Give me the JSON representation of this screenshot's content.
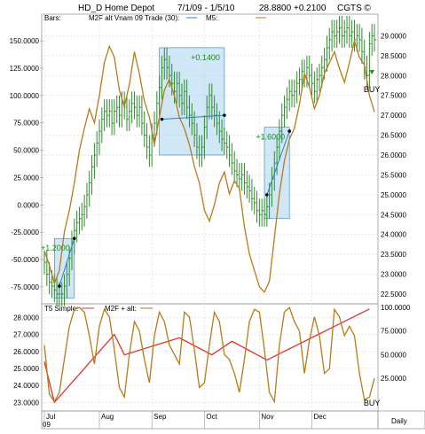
{
  "header": {
    "symbol": "HD_D",
    "name": "Home Depot",
    "range": "7/1/09 - 1/5/10",
    "price": "28.8800",
    "change": "+0.2100",
    "source": "CGTS ©"
  },
  "colors": {
    "bar_up": "#2e8b2e",
    "bar_down": "#2e8b2e",
    "indicator": "#b87a1a",
    "trend": "#e0312a",
    "trade_box": "#a9d3f0",
    "trade_line": "#2a7fc0",
    "trade_label": "#1a8a1a",
    "grid": "#d9d9d9"
  },
  "chart_data": [
    {
      "type": "line",
      "panel": "price",
      "legend": {
        "bars": "Bars:",
        "trade": "M2F alt Vnam 09 Trade (30):",
        "m5": "M5:"
      },
      "right_ticks": [
        "29.0000",
        "28.5000",
        "28.0000",
        "27.5000",
        "27.0000",
        "26.5000",
        "26.0000",
        "25.5000",
        "25.0000",
        "24.5000",
        "24.0000",
        "23.5000",
        "23.0000",
        "22.5000"
      ],
      "right_ylim": [
        22.3,
        29.5
      ],
      "left_ticks": [
        "150.0000",
        "125.0000",
        "100.0000",
        "75.0000",
        "50.0000",
        "25.0000",
        "0.0000",
        "-25.0000",
        "-50.0000",
        "-75.0000"
      ],
      "left_ylim": [
        -88.9,
        172.8
      ],
      "x_range": [
        0,
        132
      ],
      "month_labels": [
        {
          "label": "Jul",
          "x": 0
        },
        {
          "label": "Aug",
          "x": 22
        },
        {
          "label": "Sep",
          "x": 43
        },
        {
          "label": "Oct",
          "x": 64
        },
        {
          "label": "Nov",
          "x": 86
        },
        {
          "label": "Dec",
          "x": 107
        }
      ],
      "year_label": "09",
      "price_bars": {
        "x_start": 0,
        "x_step": 1,
        "close": [
          23.3,
          23.0,
          22.8,
          22.7,
          22.6,
          22.5,
          22.5,
          22.5,
          22.7,
          23.0,
          23.4,
          23.8,
          24.1,
          24.3,
          24.4,
          24.5,
          24.7,
          25.0,
          25.3,
          25.7,
          26.0,
          26.3,
          26.6,
          26.9,
          27.1,
          27.0,
          27.1,
          26.8,
          27.1,
          27.2,
          27.0,
          27.3,
          27.2,
          26.9,
          27.1,
          27.3,
          27.2,
          27.0,
          27.2,
          26.8,
          26.5,
          26.2,
          26.0,
          26.5,
          26.8,
          27.3,
          27.7,
          28.2,
          28.4,
          28.2,
          28.0,
          27.8,
          27.6,
          27.8,
          27.5,
          27.3,
          27.6,
          27.2,
          27.0,
          26.8,
          26.5,
          26.2,
          26.0,
          26.2,
          26.7,
          27.2,
          27.5,
          27.2,
          27.0,
          26.8,
          26.6,
          26.4,
          26.3,
          26.2,
          26.0,
          25.8,
          25.6,
          25.5,
          25.4,
          25.5,
          25.3,
          25.2,
          25.1,
          24.9,
          24.8,
          24.6,
          24.5,
          24.6,
          24.5,
          24.7,
          25.0,
          25.4,
          25.8,
          26.2,
          26.6,
          27.0,
          27.2,
          27.4,
          27.6,
          27.5,
          27.6,
          27.8,
          27.9,
          28.1,
          28.0,
          28.2,
          28.0,
          27.8,
          27.6,
          27.9,
          28.0,
          28.2,
          28.4,
          28.7,
          28.9,
          29.1,
          29.0,
          29.1,
          29.2,
          29.0,
          29.1,
          29.2,
          29.0,
          29.1,
          28.9,
          29.0,
          28.9,
          28.6,
          28.2,
          28.0,
          28.8,
          29.0,
          28.9
        ],
        "range": 0.6
      },
      "m5_series": [
        [
          0,
          -42
        ],
        [
          2,
          -55
        ],
        [
          4,
          -72
        ],
        [
          6,
          -60
        ],
        [
          8,
          -25
        ],
        [
          10,
          -5
        ],
        [
          12,
          20
        ],
        [
          14,
          50
        ],
        [
          16,
          70
        ],
        [
          18,
          88
        ],
        [
          20,
          75
        ],
        [
          22,
          100
        ],
        [
          24,
          130
        ],
        [
          26,
          145
        ],
        [
          28,
          135
        ],
        [
          30,
          105
        ],
        [
          32,
          90
        ],
        [
          34,
          110
        ],
        [
          36,
          140
        ],
        [
          38,
          120
        ],
        [
          40,
          95
        ],
        [
          42,
          80
        ],
        [
          44,
          55
        ],
        [
          46,
          80
        ],
        [
          48,
          105
        ],
        [
          50,
          115
        ],
        [
          52,
          100
        ],
        [
          54,
          80
        ],
        [
          56,
          70
        ],
        [
          58,
          55
        ],
        [
          60,
          35
        ],
        [
          62,
          20
        ],
        [
          64,
          -5
        ],
        [
          66,
          -15
        ],
        [
          68,
          0
        ],
        [
          70,
          20
        ],
        [
          72,
          30
        ],
        [
          74,
          10
        ],
        [
          76,
          22
        ],
        [
          78,
          15
        ],
        [
          80,
          -20
        ],
        [
          82,
          -45
        ],
        [
          84,
          -60
        ],
        [
          86,
          -75
        ],
        [
          88,
          -80
        ],
        [
          90,
          -70
        ],
        [
          92,
          -30
        ],
        [
          94,
          10
        ],
        [
          96,
          40
        ],
        [
          98,
          60
        ],
        [
          100,
          70
        ],
        [
          102,
          92
        ],
        [
          104,
          120
        ],
        [
          106,
          108
        ],
        [
          108,
          88
        ],
        [
          110,
          100
        ],
        [
          112,
          120
        ],
        [
          114,
          130
        ],
        [
          116,
          140
        ],
        [
          118,
          125
        ],
        [
          120,
          112
        ],
        [
          122,
          130
        ],
        [
          124,
          150
        ],
        [
          126,
          135
        ],
        [
          128,
          128
        ],
        [
          130,
          100
        ],
        [
          132,
          85
        ]
      ],
      "trades": [
        {
          "x0": 4,
          "x1": 12,
          "y0": 22.4,
          "y1": 23.9,
          "label": "+1.2000",
          "entry": [
            6,
            22.7
          ],
          "exit": [
            12,
            23.9
          ]
        },
        {
          "x0": 46,
          "x1": 72,
          "y0": 26.0,
          "y1": 28.7,
          "label": "+0.1400",
          "entry": [
            47,
            26.9
          ],
          "exit": [
            72,
            27.0
          ]
        },
        {
          "x0": 88,
          "x1": 98,
          "y0": 24.4,
          "y1": 26.7,
          "label": "+1.6000",
          "entry": [
            89,
            25.0
          ],
          "exit": [
            98,
            26.6
          ]
        }
      ],
      "buy_signal": {
        "label": "BUY",
        "x": 131
      }
    },
    {
      "type": "line",
      "panel": "indicator",
      "legend": {
        "t5": "T5 Simple:",
        "m2f": "M2F + alt:"
      },
      "left_ticks": [
        "28.0000",
        "27.0000",
        "26.0000",
        "25.0000",
        "24.0000",
        "23.0000"
      ],
      "left_ylim": [
        22.6,
        28.7
      ],
      "right_ticks": [
        "100.0000",
        "75.0000",
        "50.0000",
        "25.0000"
      ],
      "right_ylim": [
        -8,
        102
      ],
      "trend_series": [
        [
          0,
          25.4
        ],
        [
          4,
          23.0
        ],
        [
          28,
          27.0
        ],
        [
          32,
          25.8
        ],
        [
          54,
          26.8
        ],
        [
          67,
          25.8
        ],
        [
          75,
          26.6
        ],
        [
          89,
          25.5
        ],
        [
          130,
          28.5
        ]
      ],
      "osc_series": [
        [
          0,
          60
        ],
        [
          2,
          8
        ],
        [
          4,
          0
        ],
        [
          6,
          10
        ],
        [
          8,
          45
        ],
        [
          10,
          80
        ],
        [
          12,
          98
        ],
        [
          14,
          100
        ],
        [
          16,
          95
        ],
        [
          18,
          70
        ],
        [
          20,
          40
        ],
        [
          22,
          80
        ],
        [
          24,
          98
        ],
        [
          26,
          90
        ],
        [
          28,
          55
        ],
        [
          30,
          15
        ],
        [
          32,
          5
        ],
        [
          34,
          50
        ],
        [
          36,
          85
        ],
        [
          38,
          75
        ],
        [
          40,
          45
        ],
        [
          42,
          20
        ],
        [
          44,
          70
        ],
        [
          46,
          95
        ],
        [
          48,
          85
        ],
        [
          50,
          60
        ],
        [
          52,
          50
        ],
        [
          54,
          40
        ],
        [
          56,
          95
        ],
        [
          58,
          90
        ],
        [
          60,
          55
        ],
        [
          62,
          15
        ],
        [
          64,
          20
        ],
        [
          66,
          60
        ],
        [
          68,
          95
        ],
        [
          70,
          85
        ],
        [
          72,
          50
        ],
        [
          74,
          45
        ],
        [
          76,
          30
        ],
        [
          78,
          10
        ],
        [
          80,
          45
        ],
        [
          82,
          85
        ],
        [
          84,
          98
        ],
        [
          86,
          95
        ],
        [
          88,
          55
        ],
        [
          90,
          10
        ],
        [
          92,
          0
        ],
        [
          94,
          60
        ],
        [
          96,
          95
        ],
        [
          98,
          100
        ],
        [
          100,
          85
        ],
        [
          102,
          75
        ],
        [
          104,
          30
        ],
        [
          106,
          65
        ],
        [
          108,
          90
        ],
        [
          110,
          70
        ],
        [
          112,
          30
        ],
        [
          114,
          35
        ],
        [
          116,
          98
        ],
        [
          118,
          90
        ],
        [
          120,
          70
        ],
        [
          122,
          80
        ],
        [
          124,
          70
        ],
        [
          126,
          30
        ],
        [
          128,
          2
        ],
        [
          130,
          5
        ],
        [
          132,
          25
        ]
      ],
      "buy_signal": {
        "label": "BUY",
        "x": 131
      },
      "daily_label": "Daily"
    }
  ]
}
